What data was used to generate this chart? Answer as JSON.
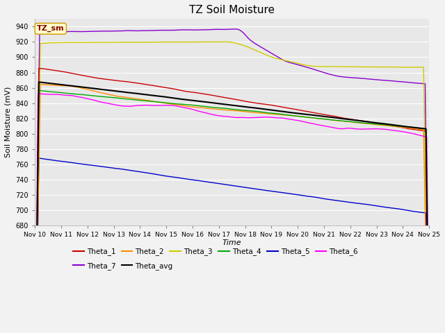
{
  "title": "TZ Soil Moisture",
  "xlabel": "Time",
  "ylabel": "Soil Moisture (mV)",
  "ylim": [
    680,
    950
  ],
  "x_labels": [
    "Nov 10",
    "Nov 11",
    "Nov 12",
    "Nov 13",
    "Nov 14",
    "Nov 15",
    "Nov 16",
    "Nov 17",
    "Nov 18",
    "Nov 19",
    "Nov 20",
    "Nov 21",
    "Nov 22",
    "Nov 23",
    "Nov 24",
    "Nov 25"
  ],
  "legend_label": "TZ_sm",
  "series_colors": {
    "Theta_1": "#CC0000",
    "Theta_2": "#FF8C00",
    "Theta_3": "#CCCC00",
    "Theta_4": "#00AA00",
    "Theta_5": "#0000CC",
    "Theta_6": "#FF00FF",
    "Theta_7": "#8800CC",
    "Theta_avg": "#000000"
  },
  "fig_bg": "#F2F2F2",
  "plot_bg": "#E8E8E8"
}
